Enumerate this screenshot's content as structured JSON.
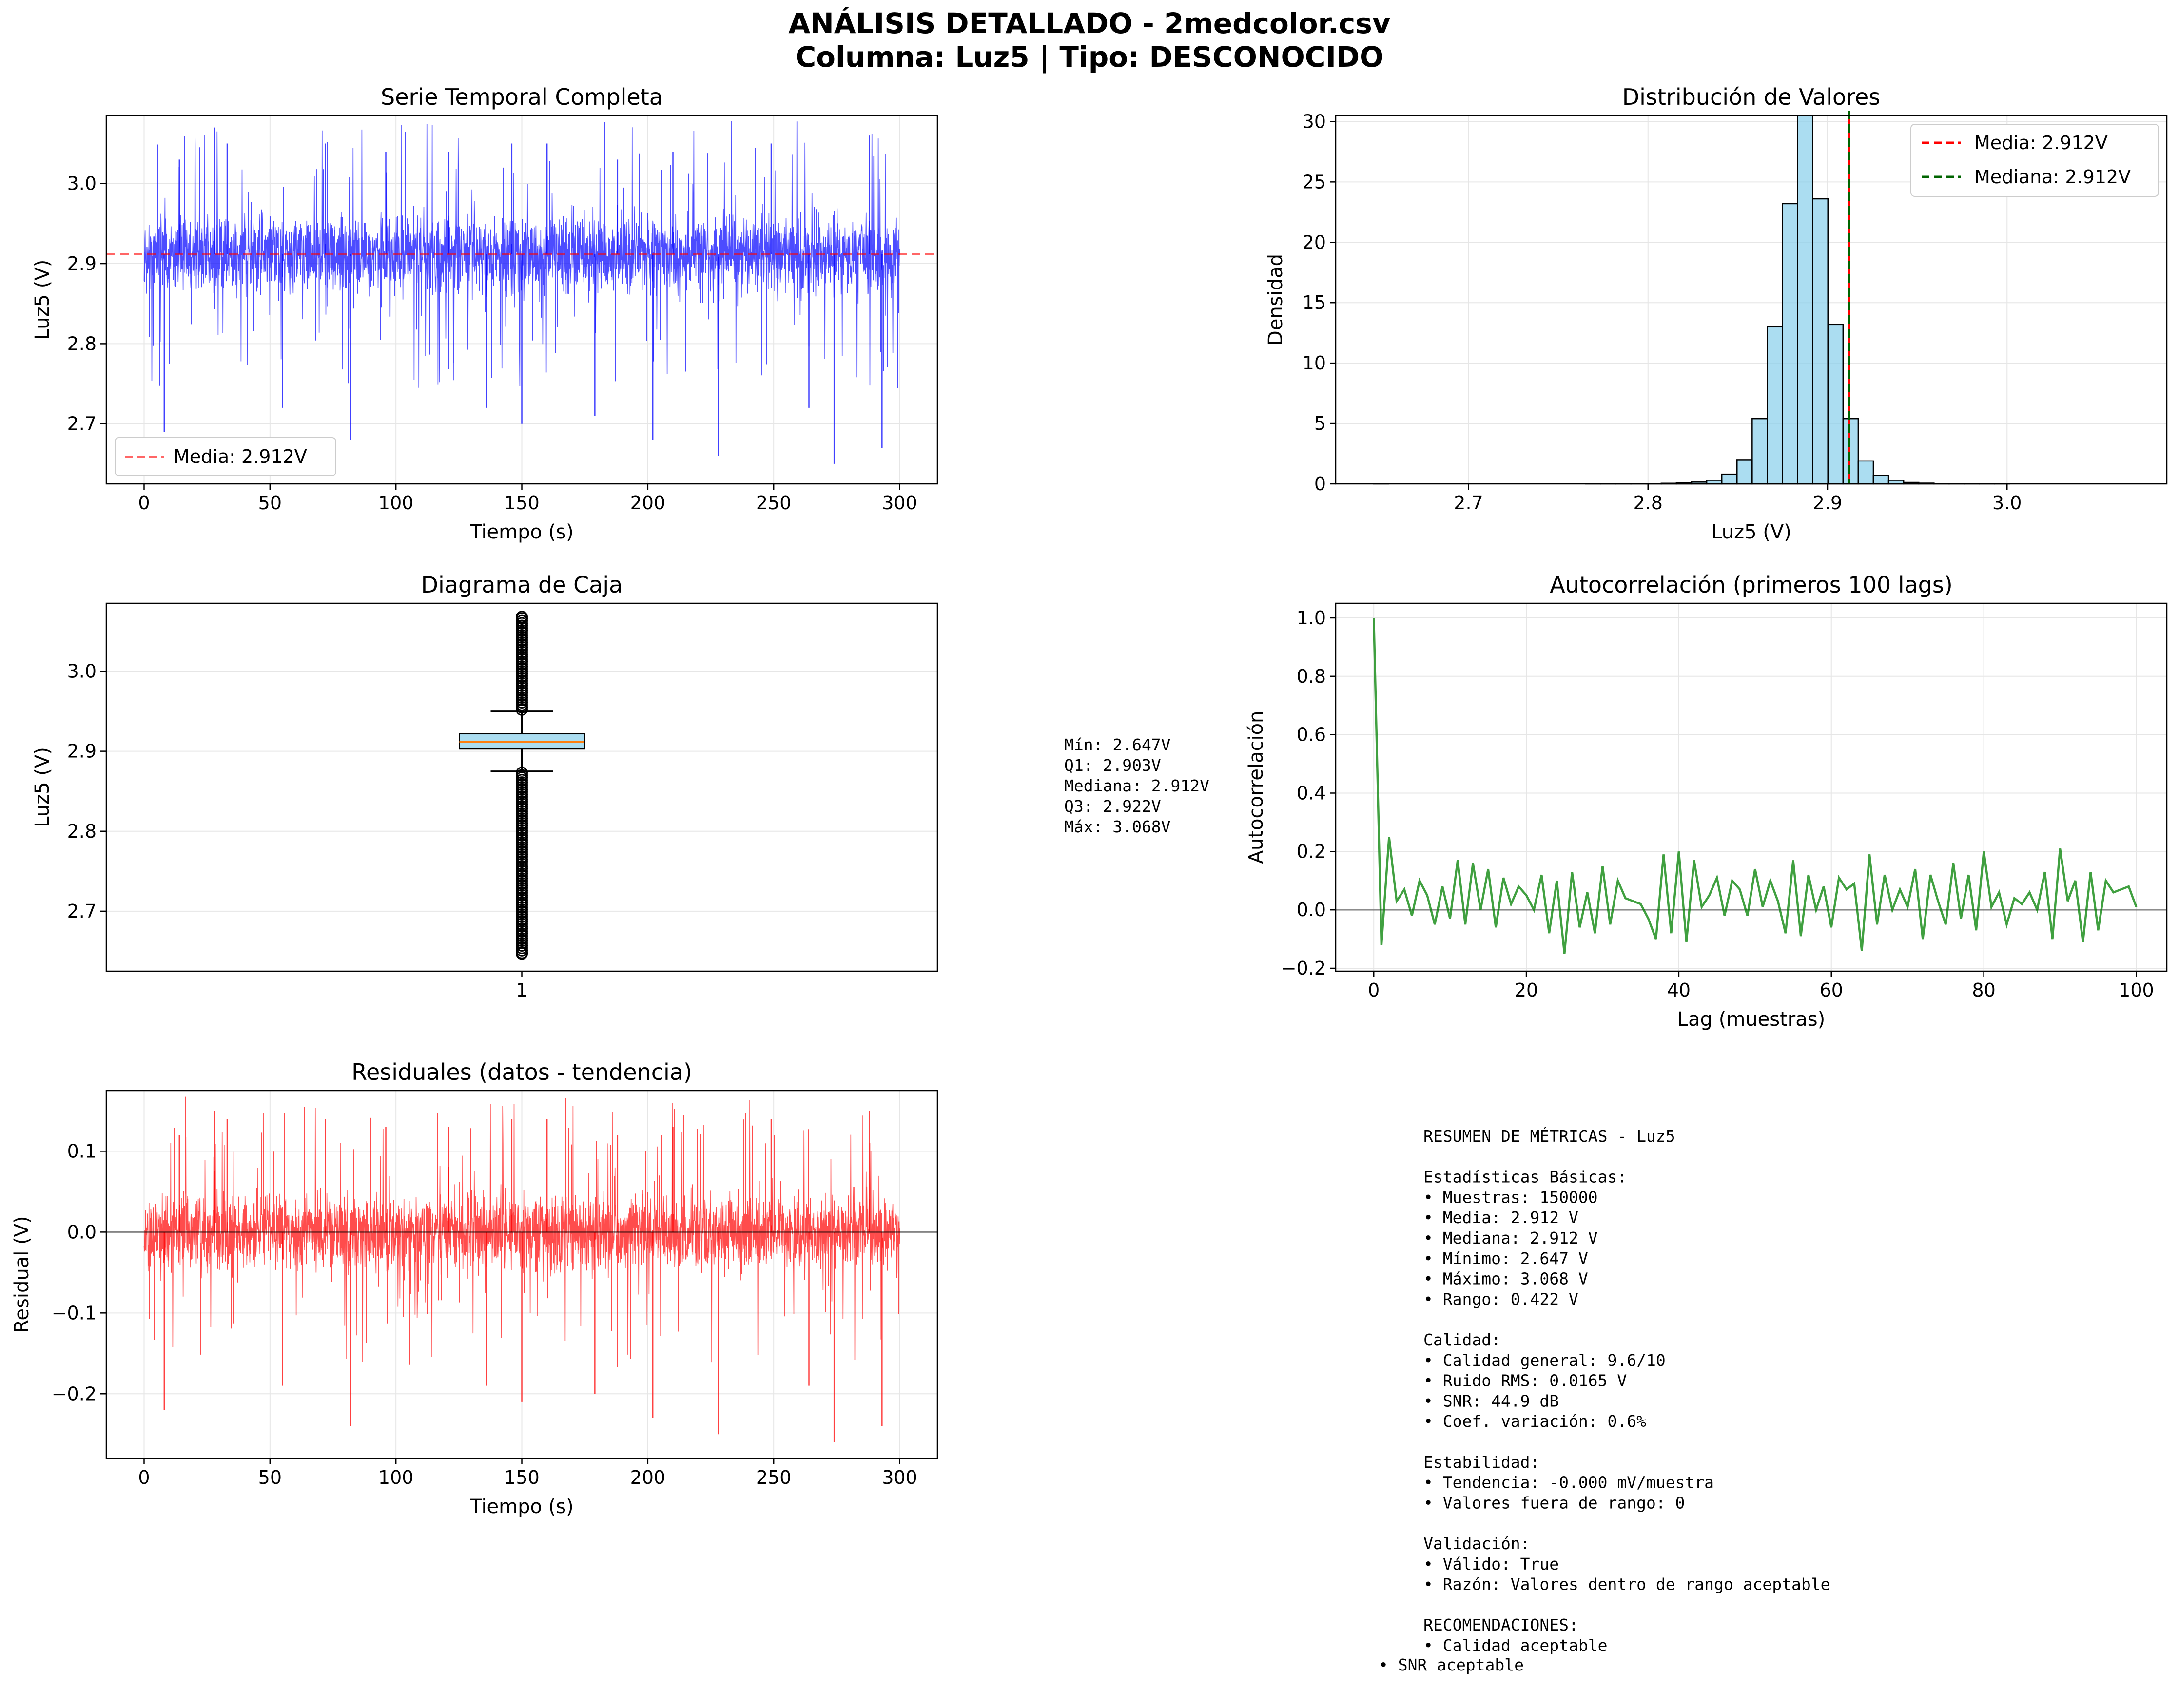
{
  "figure": {
    "title_line1": "ANÁLISIS DETALLADO - 2medcolor.csv",
    "title_line2": "Columna: Luz5 | Tipo: DESCONOCIDO"
  },
  "colors": {
    "series_blue": "#0000ff",
    "mean_red": "#ff0000",
    "median_green": "#006400",
    "hist_fill": "#87ceeb",
    "acf_green": "#008000",
    "resid_red": "#ff0000",
    "grid": "#e6e6e6"
  },
  "chart_data": [
    {
      "id": "timeseries",
      "type": "line",
      "title": "Serie Temporal Completa",
      "xlabel": "Tiempo (s)",
      "ylabel": "Luz5 (V)",
      "xlim": [
        -15,
        315
      ],
      "ylim": [
        2.625,
        3.085
      ],
      "xticks": [
        0,
        50,
        100,
        150,
        200,
        250,
        300
      ],
      "yticks": [
        2.7,
        2.8,
        2.9,
        3.0
      ],
      "ytick_labels": [
        "2.7",
        "2.8",
        "2.9",
        "3.0"
      ],
      "xtick_labels": [
        "0",
        "50",
        "100",
        "150",
        "200",
        "250",
        "300"
      ],
      "grid": true,
      "legend_loc": "lower-left",
      "legend": [
        "Media: 2.912V"
      ],
      "mean": 2.912,
      "x_range": [
        0,
        300
      ],
      "band": [
        2.85,
        2.97
      ],
      "spikes": [
        [
          8,
          2.69
        ],
        [
          14,
          3.03
        ],
        [
          28,
          3.07
        ],
        [
          33,
          3.05
        ],
        [
          55,
          2.72
        ],
        [
          72,
          3.05
        ],
        [
          82,
          2.68
        ],
        [
          96,
          3.04
        ],
        [
          121,
          3.04
        ],
        [
          136,
          2.72
        ],
        [
          146,
          3.05
        ],
        [
          150,
          2.7
        ],
        [
          160,
          3.05
        ],
        [
          179,
          2.71
        ],
        [
          188,
          3.03
        ],
        [
          202,
          2.68
        ],
        [
          210,
          3.04
        ],
        [
          228,
          2.66
        ],
        [
          249,
          3.05
        ],
        [
          264,
          2.72
        ],
        [
          274,
          2.65
        ],
        [
          288,
          3.06
        ],
        [
          293,
          2.67
        ]
      ]
    },
    {
      "id": "histogram",
      "type": "bar",
      "title": "Distribución de Valores",
      "xlabel": "Luz5 (V)",
      "ylabel": "Densidad",
      "xlim": [
        2.626,
        3.089
      ],
      "ylim": [
        0,
        30.5
      ],
      "xticks": [
        2.7,
        2.8,
        2.9,
        3.0
      ],
      "xtick_labels": [
        "2.7",
        "2.8",
        "2.9",
        "3.0"
      ],
      "yticks": [
        0,
        5,
        10,
        15,
        20,
        25,
        30
      ],
      "ytick_labels": [
        "0",
        "5",
        "10",
        "15",
        "20",
        "25",
        "30"
      ],
      "grid": true,
      "legend_loc": "top-right",
      "legend": [
        "Media: 2.912V",
        "Mediana: 2.912V"
      ],
      "mean": 2.912,
      "median": 2.912,
      "bins_start": 2.647,
      "bin_width": 0.00844,
      "values": [
        0.01,
        0,
        0,
        0,
        0,
        0,
        0,
        0,
        0,
        0,
        0,
        0,
        0,
        0,
        0.01,
        0.01,
        0.02,
        0.02,
        0.03,
        0.05,
        0.08,
        0.15,
        0.3,
        0.8,
        2,
        5.4,
        13,
        23.2,
        30.5,
        23.6,
        13.2,
        5.4,
        1.9,
        0.7,
        0.3,
        0.12,
        0.06,
        0.03,
        0.02,
        0.01,
        0.01,
        0.01,
        0,
        0,
        0,
        0,
        0,
        0,
        0,
        0
      ]
    },
    {
      "id": "boxplot",
      "type": "box",
      "title": "Diagrama de Caja",
      "ylabel": "Luz5 (V)",
      "ylim": [
        2.625,
        3.085
      ],
      "yticks": [
        2.7,
        2.8,
        2.9,
        3.0
      ],
      "ytick_labels": [
        "2.7",
        "2.8",
        "2.9",
        "3.0"
      ],
      "xtick_labels": [
        "1"
      ],
      "grid": true,
      "min": 2.647,
      "q1": 2.903,
      "median": 2.912,
      "q3": 2.922,
      "max": 3.068,
      "whisker_low": 2.875,
      "whisker_high": 2.95
    },
    {
      "id": "autocorr",
      "type": "line",
      "title": "Autocorrelación (primeros 100 lags)",
      "xlabel": "Lag (muestras)",
      "ylabel": "Autocorrelación",
      "xlim": [
        -5,
        104
      ],
      "ylim": [
        -0.21,
        1.05
      ],
      "xticks": [
        0,
        20,
        40,
        60,
        80,
        100
      ],
      "xtick_labels": [
        "0",
        "20",
        "40",
        "60",
        "80",
        "100"
      ],
      "yticks": [
        -0.2,
        0.0,
        0.2,
        0.4,
        0.6,
        0.8,
        1.0
      ],
      "ytick_labels": [
        "−0.2",
        "0.0",
        "0.2",
        "0.4",
        "0.6",
        "0.8",
        "1.0"
      ],
      "grid": true,
      "values": [
        1.0,
        -0.12,
        0.25,
        0.03,
        0.07,
        -0.02,
        0.1,
        0.05,
        -0.05,
        0.08,
        -0.03,
        0.17,
        -0.05,
        0.16,
        0.0,
        0.14,
        -0.06,
        0.11,
        0.02,
        0.08,
        0.05,
        0.0,
        0.12,
        -0.08,
        0.1,
        -0.15,
        0.13,
        -0.06,
        0.06,
        -0.08,
        0.15,
        -0.05,
        0.1,
        0.04,
        0.03,
        0.02,
        -0.03,
        -0.1,
        0.19,
        -0.08,
        0.2,
        -0.11,
        0.17,
        0.01,
        0.05,
        0.11,
        -0.02,
        0.1,
        0.07,
        -0.02,
        0.14,
        0.01,
        0.1,
        0.03,
        -0.08,
        0.17,
        -0.09,
        0.12,
        0.0,
        0.08,
        -0.06,
        0.11,
        0.07,
        0.09,
        -0.14,
        0.19,
        -0.05,
        0.12,
        0.0,
        0.07,
        0.01,
        0.14,
        -0.1,
        0.12,
        0.03,
        -0.05,
        0.16,
        -0.03,
        0.12,
        -0.07,
        0.2,
        0.01,
        0.06,
        -0.05,
        0.04,
        0.02,
        0.06,
        0.0,
        0.13,
        -0.1,
        0.21,
        0.03,
        0.1,
        -0.11,
        0.13,
        -0.07,
        0.1,
        0.06,
        0.07,
        0.08,
        0.01
      ]
    },
    {
      "id": "residuals",
      "type": "line",
      "title": "Residuales (datos - tendencia)",
      "xlabel": "Tiempo (s)",
      "ylabel": "Residual (V)",
      "xlim": [
        -15,
        315
      ],
      "ylim": [
        -0.28,
        0.175
      ],
      "xticks": [
        0,
        50,
        100,
        150,
        200,
        250,
        300
      ],
      "xtick_labels": [
        "0",
        "50",
        "100",
        "150",
        "200",
        "250",
        "300"
      ],
      "yticks": [
        -0.2,
        -0.1,
        0.0,
        0.1
      ],
      "ytick_labels": [
        "−0.2",
        "−0.1",
        "0.0",
        "0.1"
      ],
      "grid": true,
      "x_range": [
        0,
        300
      ],
      "band": [
        -0.06,
        0.06
      ],
      "spikes": [
        [
          8,
          -0.22
        ],
        [
          14,
          0.12
        ],
        [
          28,
          0.15
        ],
        [
          33,
          0.14
        ],
        [
          55,
          -0.19
        ],
        [
          72,
          0.14
        ],
        [
          82,
          -0.24
        ],
        [
          96,
          0.13
        ],
        [
          121,
          0.13
        ],
        [
          136,
          -0.19
        ],
        [
          146,
          0.14
        ],
        [
          150,
          -0.21
        ],
        [
          160,
          0.14
        ],
        [
          179,
          -0.2
        ],
        [
          188,
          0.12
        ],
        [
          202,
          -0.23
        ],
        [
          210,
          0.13
        ],
        [
          228,
          -0.25
        ],
        [
          249,
          0.14
        ],
        [
          264,
          -0.19
        ],
        [
          274,
          -0.26
        ],
        [
          288,
          0.15
        ],
        [
          293,
          -0.24
        ]
      ]
    }
  ],
  "box_stats_text": [
    "Mín: 2.647V",
    "Q1: 2.903V",
    "Mediana: 2.912V",
    "Q3: 2.922V",
    "Máx: 3.068V"
  ],
  "summary": {
    "lines": [
      "RESUMEN DE MÉTRICAS - Luz5",
      "",
      "Estadísticas Básicas:",
      "• Muestras: 150000",
      "• Media: 2.912 V",
      "• Mediana: 2.912 V",
      "• Mínimo: 2.647 V",
      "• Máximo: 3.068 V",
      "• Rango: 0.422 V",
      "",
      "Calidad:",
      "• Calidad general: 9.6/10",
      "• Ruido RMS: 0.0165 V",
      "• SNR: 44.9 dB",
      "• Coef. variación: 0.6%",
      "",
      "Estabilidad:",
      "• Tendencia: -0.000 mV/muestra",
      "• Valores fuera de rango: 0",
      "",
      "Validación:",
      "• Válido: True",
      "• Razón: Valores dentro de rango aceptable",
      "",
      "RECOMENDACIONES:",
      "• Calidad aceptable"
    ],
    "last_line": "• SNR aceptable"
  }
}
